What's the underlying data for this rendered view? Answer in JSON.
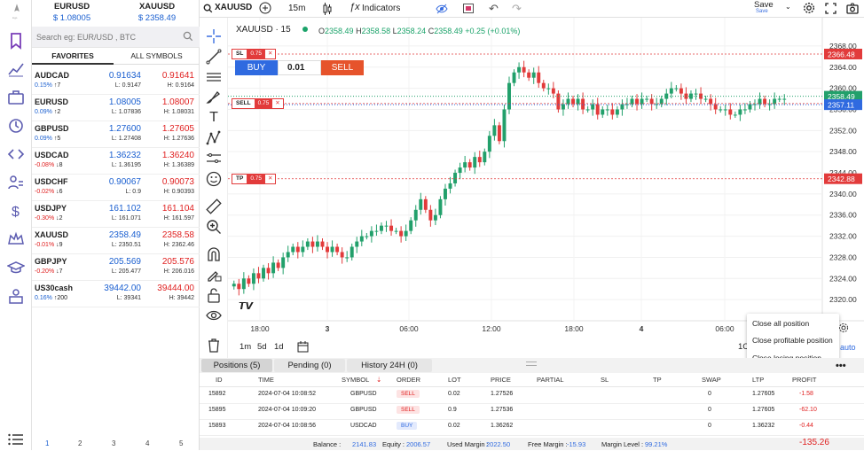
{
  "tickers": [
    {
      "symbol": "EURUSD",
      "price": "$ 1.08005"
    },
    {
      "symbol": "XAUUSD",
      "price": "$ 2358.49"
    }
  ],
  "search": {
    "placeholder": "Search eg: EUR/USD , BTC"
  },
  "watch_tabs": [
    "FAVORITES",
    "ALL SYMBOLS"
  ],
  "watchlist": [
    {
      "symbol": "AUDCAD",
      "change": "0.15%",
      "arrow": "↑",
      "count": "7",
      "bid": "0.91634",
      "ask": "0.91641",
      "low": "L: 0.9147",
      "high": "H: 0.9164"
    },
    {
      "symbol": "EURUSD",
      "change": "0.09%",
      "arrow": "↑",
      "count": "2",
      "bid": "1.08005",
      "ask": "1.08007",
      "low": "L: 1.07836",
      "high": "H: 1.08031"
    },
    {
      "symbol": "GBPUSD",
      "change": "0.09%",
      "arrow": "↑",
      "count": "5",
      "bid": "1.27600",
      "ask": "1.27605",
      "low": "L: 1.27408",
      "high": "H: 1.27636"
    },
    {
      "symbol": "USDCAD",
      "change": "-0.08%",
      "arrow": "↓",
      "count": "8",
      "bid": "1.36232",
      "ask": "1.36240",
      "low": "L: 1.36195",
      "high": "H: 1.36389"
    },
    {
      "symbol": "USDCHF",
      "change": "-0.02%",
      "arrow": "↓",
      "count": "6",
      "bid": "0.90067",
      "ask": "0.90073",
      "low": "L: 0.9",
      "high": "H: 0.90393"
    },
    {
      "symbol": "USDJPY",
      "change": "-0.30%",
      "arrow": "↓",
      "count": "2",
      "bid": "161.102",
      "ask": "161.104",
      "low": "L: 161.071",
      "high": "H: 161.597"
    },
    {
      "symbol": "XAUUSD",
      "change": "-0.01%",
      "arrow": "↓",
      "count": "9",
      "bid": "2358.49",
      "ask": "2358.58",
      "low": "L: 2350.51",
      "high": "H: 2362.46"
    },
    {
      "symbol": "GBPJPY",
      "change": "-0.20%",
      "arrow": "↓",
      "count": "7",
      "bid": "205.569",
      "ask": "205.576",
      "low": "L: 205.477",
      "high": "H: 206.016"
    },
    {
      "symbol": "US30cash",
      "change": "0.16%",
      "arrow": "↑",
      "count": "200",
      "bid": "39442.00",
      "ask": "39444.00",
      "low": "L: 39341",
      "high": "H: 39442"
    }
  ],
  "pager": [
    "1",
    "2",
    "3",
    "4",
    "5"
  ],
  "toolbar": {
    "symbol": "XAUUSD",
    "interval": "15m",
    "indicators": "Indicators",
    "save": "Save",
    "save_sub": "Save"
  },
  "chart": {
    "legend_symbol": "XAUUSD · 15",
    "o": "2358.49",
    "h": "2358.58",
    "l": "2358.24",
    "c": "2358.49",
    "chg": "+0.25 (+0.01%)",
    "order_buy": "BUY",
    "order_qty": "0.01",
    "order_sell": "SELL",
    "lines": [
      {
        "tag": "SL",
        "qty": "0.75",
        "price": 2366.48,
        "label": "2366.48",
        "color": "#e23b3b"
      },
      {
        "tag": "SELL",
        "qty": "0.75",
        "price": 2357.11,
        "label": "2357.11",
        "color": "#e23b3b"
      },
      {
        "tag": "TP",
        "qty": "0.75",
        "price": 2342.88,
        "label": "2342.88",
        "color": "#e23b3b"
      }
    ],
    "last_price": "2358.49",
    "last_price_val": 2358.49,
    "bid_price": "2357.11",
    "y_ticks": [
      "2368.00",
      "2364.00",
      "2360.00",
      "2356.00",
      "2352.00",
      "2348.00",
      "2344.00",
      "2340.00",
      "2336.00",
      "2332.00",
      "2328.00",
      "2324.00",
      "2320.00"
    ],
    "x_ticks": [
      "18:00",
      "3",
      "06:00",
      "12:00",
      "18:00",
      "4",
      "06:00"
    ],
    "timeframes": [
      "1m",
      "5d",
      "1d"
    ],
    "x_partial": "1C",
    "auto": "auto"
  },
  "context_menu": [
    "Close all position",
    "Close profitable position",
    "Close losing position"
  ],
  "bottom": {
    "tabs": [
      "Positions (5)",
      "Pending (0)",
      "History 24H (0)"
    ],
    "columns": [
      "ID",
      "TIME",
      "SYMBOL",
      "ORDER",
      "LOT",
      "PRICE",
      "PARTIAL",
      "SL",
      "TP",
      "SWAP",
      "LTP",
      "PROFIT"
    ],
    "rows": [
      {
        "id": "15892",
        "time": "2024-07-04 10:08:52",
        "symbol": "GBPUSD",
        "order": "SELL",
        "lot": "0.02",
        "price": "1.27526",
        "swap": "0",
        "ltp": "1.27605",
        "profit": "-1.58"
      },
      {
        "id": "15895",
        "time": "2024-07-04 10:09:20",
        "symbol": "GBPUSD",
        "order": "SELL",
        "lot": "0.9",
        "price": "1.27536",
        "swap": "0",
        "ltp": "1.27605",
        "profit": "-62.10"
      },
      {
        "id": "15893",
        "time": "2024-07-04 10:08:56",
        "symbol": "USDCAD",
        "order": "BUY",
        "lot": "0.02",
        "price": "1.36262",
        "swap": "0",
        "ltp": "1.36232",
        "profit": "-0.44"
      }
    ],
    "footer": {
      "balance_label": "Balance :",
      "balance": "2141.83",
      "equity_label": "Equity :",
      "equity": "2006.57",
      "used_label": "Used Margin :",
      "used": "2022.50",
      "free_label": "Free Margin :",
      "free": "-15.93",
      "level_label": "Margin Level :",
      "level": "99.21%",
      "total": "-135.26"
    }
  },
  "chart_data": {
    "type": "candlestick",
    "ylim": [
      2318,
      2370
    ],
    "series": [
      2323,
      2322,
      2324,
      2323,
      2325,
      2324,
      2326,
      2325,
      2327,
      2326,
      2328,
      2329,
      2330,
      2329,
      2330,
      2331,
      2330,
      2331,
      2330,
      2329,
      2330,
      2329,
      2328,
      2328,
      2330,
      2331,
      2332,
      2332,
      2333,
      2333,
      2334,
      2334,
      2333,
      2333,
      2332,
      2333,
      2335,
      2337,
      2339,
      2337,
      2335,
      2336,
      2339,
      2341,
      2342,
      2344,
      2345,
      2346,
      2345,
      2347,
      2346,
      2348,
      2351,
      2353,
      2350,
      2356,
      2361,
      2363,
      2364,
      2363,
      2362,
      2363,
      2361,
      2360,
      2360,
      2359,
      2356,
      2357,
      2358,
      2357,
      2358,
      2356,
      2356,
      2357,
      2355,
      2356,
      2356,
      2355,
      2356,
      2357,
      2357,
      2358,
      2357,
      2358,
      2358,
      2357,
      2357,
      2358,
      2359,
      2360,
      2360,
      2359,
      2358,
      2359,
      2359,
      2358,
      2358,
      2357,
      2356,
      2356,
      2356,
      2355,
      2355,
      2356,
      2356,
      2357,
      2357,
      2358,
      2357,
      2357,
      2358,
      2358,
      2358
    ]
  }
}
